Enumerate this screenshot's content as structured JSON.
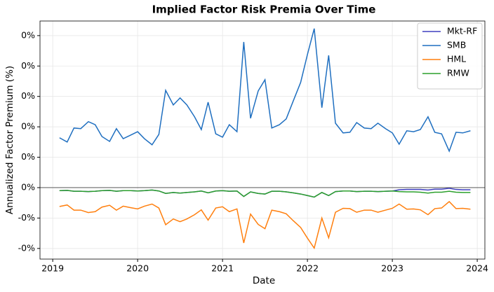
{
  "chart_data": {
    "type": "line",
    "title": "Implied Factor Risk Premia Over Time",
    "x_label": "Date",
    "y_label": "Annualized Factor Premium (%)",
    "x": [
      2019.08,
      2019.17,
      2019.25,
      2019.33,
      2019.42,
      2019.5,
      2019.58,
      2019.67,
      2019.75,
      2019.83,
      2019.92,
      2020,
      2020.08,
      2020.17,
      2020.25,
      2020.33,
      2020.42,
      2020.5,
      2020.58,
      2020.67,
      2020.75,
      2020.83,
      2020.92,
      2021,
      2021.08,
      2021.17,
      2021.25,
      2021.33,
      2021.42,
      2021.5,
      2021.58,
      2021.67,
      2021.75,
      2021.83,
      2021.92,
      2022,
      2022.08,
      2022.17,
      2022.25,
      2022.33,
      2022.42,
      2022.5,
      2022.58,
      2022.67,
      2022.75,
      2022.83,
      2022.92,
      2023,
      2023.08,
      2023.17,
      2023.25,
      2023.33,
      2023.42,
      2023.5,
      2023.58,
      2023.67,
      2023.75,
      2023.83,
      2023.92
    ],
    "series": [
      {
        "name": "Mkt-RF",
        "color": "#3f3fbf",
        "values": [
          -0.0001,
          -9e-05,
          -0.00012,
          -0.00012,
          -0.00013,
          -0.00012,
          -0.0001,
          -9e-05,
          -0.00012,
          -0.0001,
          -0.0001,
          -0.00011,
          -0.0001,
          -8e-05,
          -0.00011,
          -0.00019,
          -0.00016,
          -0.00018,
          -0.00016,
          -0.00014,
          -0.00011,
          -0.00017,
          -0.00011,
          -0.0001,
          -0.00012,
          -0.00011,
          -0.00029,
          -0.00014,
          -0.00019,
          -0.00021,
          -0.00012,
          -0.00012,
          -0.00014,
          -0.00017,
          -0.00021,
          -0.00026,
          -0.00031,
          -0.00016,
          -0.00026,
          -0.00013,
          -0.00011,
          -0.00011,
          -0.00013,
          -0.00012,
          -0.00012,
          -0.00013,
          -0.00012,
          -0.00011,
          -7e-05,
          -6e-05,
          -6e-05,
          -6e-05,
          -8e-05,
          -5e-05,
          -5e-05,
          -2e-05,
          -6e-05,
          -7e-05,
          -7e-05
        ]
      },
      {
        "name": "SMB",
        "color": "#1f6fc0",
        "values": [
          0.00164,
          0.0015,
          0.00196,
          0.00194,
          0.00217,
          0.00207,
          0.00168,
          0.00152,
          0.00194,
          0.00161,
          0.00173,
          0.00184,
          0.00161,
          0.00141,
          0.00175,
          0.0032,
          0.00272,
          0.00295,
          0.00272,
          0.00233,
          0.00191,
          0.00281,
          0.00177,
          0.00166,
          0.00207,
          0.00184,
          0.00479,
          0.00228,
          0.00318,
          0.00355,
          0.00196,
          0.00207,
          0.00226,
          0.00283,
          0.00346,
          0.00438,
          0.00523,
          0.00263,
          0.00435,
          0.00212,
          0.0018,
          0.00182,
          0.00214,
          0.00196,
          0.00194,
          0.00212,
          0.00194,
          0.0018,
          0.00143,
          0.00187,
          0.00184,
          0.00191,
          0.00233,
          0.00182,
          0.00177,
          0.0012,
          0.00182,
          0.0018,
          0.00187
        ]
      },
      {
        "name": "HML",
        "color": "#ff7f0e",
        "values": [
          -0.00062,
          -0.00057,
          -0.00074,
          -0.00074,
          -0.00082,
          -0.00079,
          -0.00064,
          -0.00058,
          -0.00074,
          -0.00061,
          -0.00066,
          -0.0007,
          -0.00061,
          -0.00054,
          -0.00067,
          -0.00122,
          -0.00103,
          -0.00112,
          -0.00103,
          -0.00089,
          -0.00073,
          -0.00107,
          -0.00067,
          -0.00063,
          -0.00079,
          -0.0007,
          -0.00182,
          -0.00087,
          -0.00121,
          -0.00135,
          -0.00074,
          -0.00079,
          -0.00086,
          -0.00108,
          -0.00131,
          -0.00166,
          -0.00199,
          -0.001,
          -0.00165,
          -0.00081,
          -0.00068,
          -0.00069,
          -0.00081,
          -0.00074,
          -0.00074,
          -0.00081,
          -0.00074,
          -0.00068,
          -0.00054,
          -0.00071,
          -0.0007,
          -0.00073,
          -0.00089,
          -0.00069,
          -0.00067,
          -0.00046,
          -0.00069,
          -0.00068,
          -0.00071
        ]
      },
      {
        "name": "RMW",
        "color": "#2ca02c",
        "values": [
          -0.0001,
          -9e-05,
          -0.00012,
          -0.00012,
          -0.00013,
          -0.00012,
          -0.0001,
          -9e-05,
          -0.00012,
          -0.0001,
          -0.0001,
          -0.00011,
          -0.0001,
          -8e-05,
          -0.00011,
          -0.00019,
          -0.00016,
          -0.00018,
          -0.00016,
          -0.00014,
          -0.00011,
          -0.00017,
          -0.00011,
          -0.0001,
          -0.00012,
          -0.00011,
          -0.00029,
          -0.00014,
          -0.00019,
          -0.00021,
          -0.00012,
          -0.00012,
          -0.00014,
          -0.00017,
          -0.00021,
          -0.00026,
          -0.00031,
          -0.00016,
          -0.00026,
          -0.00013,
          -0.00011,
          -0.00011,
          -0.00013,
          -0.00012,
          -0.00012,
          -0.00013,
          -0.00012,
          -0.00011,
          -0.00013,
          -0.00014,
          -0.00014,
          -0.00015,
          -0.00018,
          -0.00015,
          -0.00015,
          -0.00012,
          -0.00015,
          -0.00016,
          -0.00016
        ]
      }
    ],
    "xlim": [
      2018.85,
      2024.09
    ],
    "xticks": [
      2019,
      2020,
      2021,
      2022,
      2023,
      2024
    ],
    "ylim": [
      -0.00235,
      0.00548
    ],
    "yticks": [
      {
        "value": 0.005,
        "label": "0%"
      },
      {
        "value": 0.004,
        "label": "0%"
      },
      {
        "value": 0.003,
        "label": "0%"
      },
      {
        "value": 0.002,
        "label": "0%"
      },
      {
        "value": 0.001,
        "label": "0%"
      },
      {
        "value": 0,
        "label": "0%"
      },
      {
        "value": -0.001,
        "label": "-0%"
      },
      {
        "value": -0.002,
        "label": "-0%"
      }
    ],
    "grid": true,
    "zero_line": true,
    "legend": "upper right"
  }
}
